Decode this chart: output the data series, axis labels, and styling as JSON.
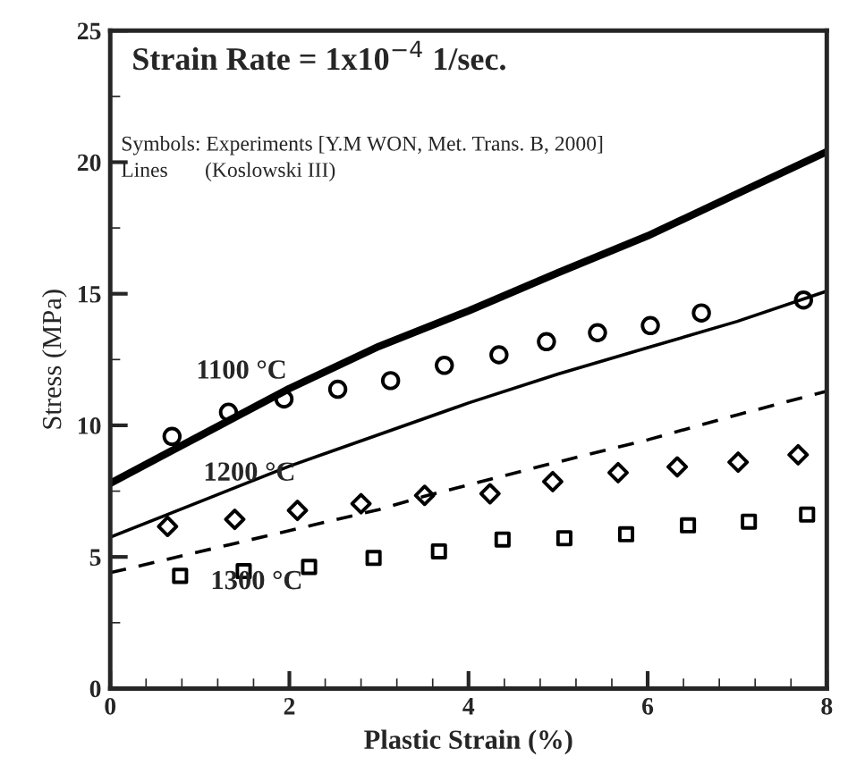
{
  "chart_data": {
    "type": "line",
    "title": "Strain Rate = 1x10$^{−4}$ 1/sec.",
    "xlabel": "Plastic Strain (%)",
    "ylabel": "Stress (MPa)",
    "xlim": [
      0,
      8
    ],
    "ylim": [
      0,
      25
    ],
    "xticks": [
      0,
      2,
      4,
      6,
      8
    ],
    "yticks": [
      0,
      5,
      10,
      15,
      20,
      25
    ],
    "grid": false,
    "legend": false,
    "annotations": [
      "Symbols: Experiments [Y.M WON, Met. Trans. B, 2000]",
      "Lines       (Koslowski III)",
      "1100 °C",
      "1200 °C",
      "1300 °C"
    ],
    "series": [
      {
        "color": "#000000",
        "line_style": "solid",
        "marker": "none",
        "x": [
          0,
          1,
          2,
          3,
          4,
          5,
          6,
          7,
          8
        ],
        "values": [
          7.8,
          9.6,
          11.4,
          13.0,
          14.35,
          15.8,
          17.2,
          18.8,
          20.4
        ]
      },
      {
        "color": "#000000",
        "line_style": "solid",
        "marker": "none",
        "x": [
          0,
          1,
          2,
          3,
          4,
          5,
          6,
          7,
          8
        ],
        "values": [
          5.75,
          7.1,
          8.45,
          9.65,
          10.85,
          11.95,
          12.95,
          13.95,
          15.1
        ]
      },
      {
        "color": "#000000",
        "line_style": "dashed",
        "marker": "none",
        "x": [
          0,
          1,
          2,
          3,
          3.5,
          4.87,
          6,
          7,
          8
        ],
        "values": [
          4.4,
          5.2,
          6.0,
          6.8,
          7.3,
          8.5,
          9.45,
          10.4,
          11.3
        ]
      },
      {
        "type": "scatter",
        "color": "#000000",
        "marker": "circle",
        "x": [
          0.69,
          1.32,
          1.94,
          2.54,
          3.13,
          3.73,
          4.34,
          4.87,
          5.44,
          6.03,
          6.6,
          7.74
        ],
        "values": [
          9.58,
          10.5,
          11.0,
          11.37,
          11.7,
          12.28,
          12.68,
          13.18,
          13.52,
          13.79,
          14.27,
          14.76
        ]
      },
      {
        "type": "scatter",
        "color": "#000000",
        "marker": "diamond",
        "x": [
          0.64,
          1.39,
          2.09,
          2.8,
          3.51,
          4.24,
          4.94,
          5.67,
          6.33,
          7.01,
          7.68
        ],
        "values": [
          6.16,
          6.43,
          6.77,
          7.02,
          7.34,
          7.4,
          7.86,
          8.2,
          8.42,
          8.6,
          8.88
        ]
      },
      {
        "type": "scatter",
        "color": "#000000",
        "marker": "square",
        "x": [
          0.78,
          1.49,
          2.22,
          2.94,
          3.67,
          4.38,
          5.07,
          5.76,
          6.45,
          7.13,
          7.78
        ],
        "values": [
          4.28,
          4.46,
          4.62,
          4.96,
          5.21,
          5.66,
          5.71,
          5.86,
          6.2,
          6.34,
          6.61
        ]
      }
    ]
  }
}
